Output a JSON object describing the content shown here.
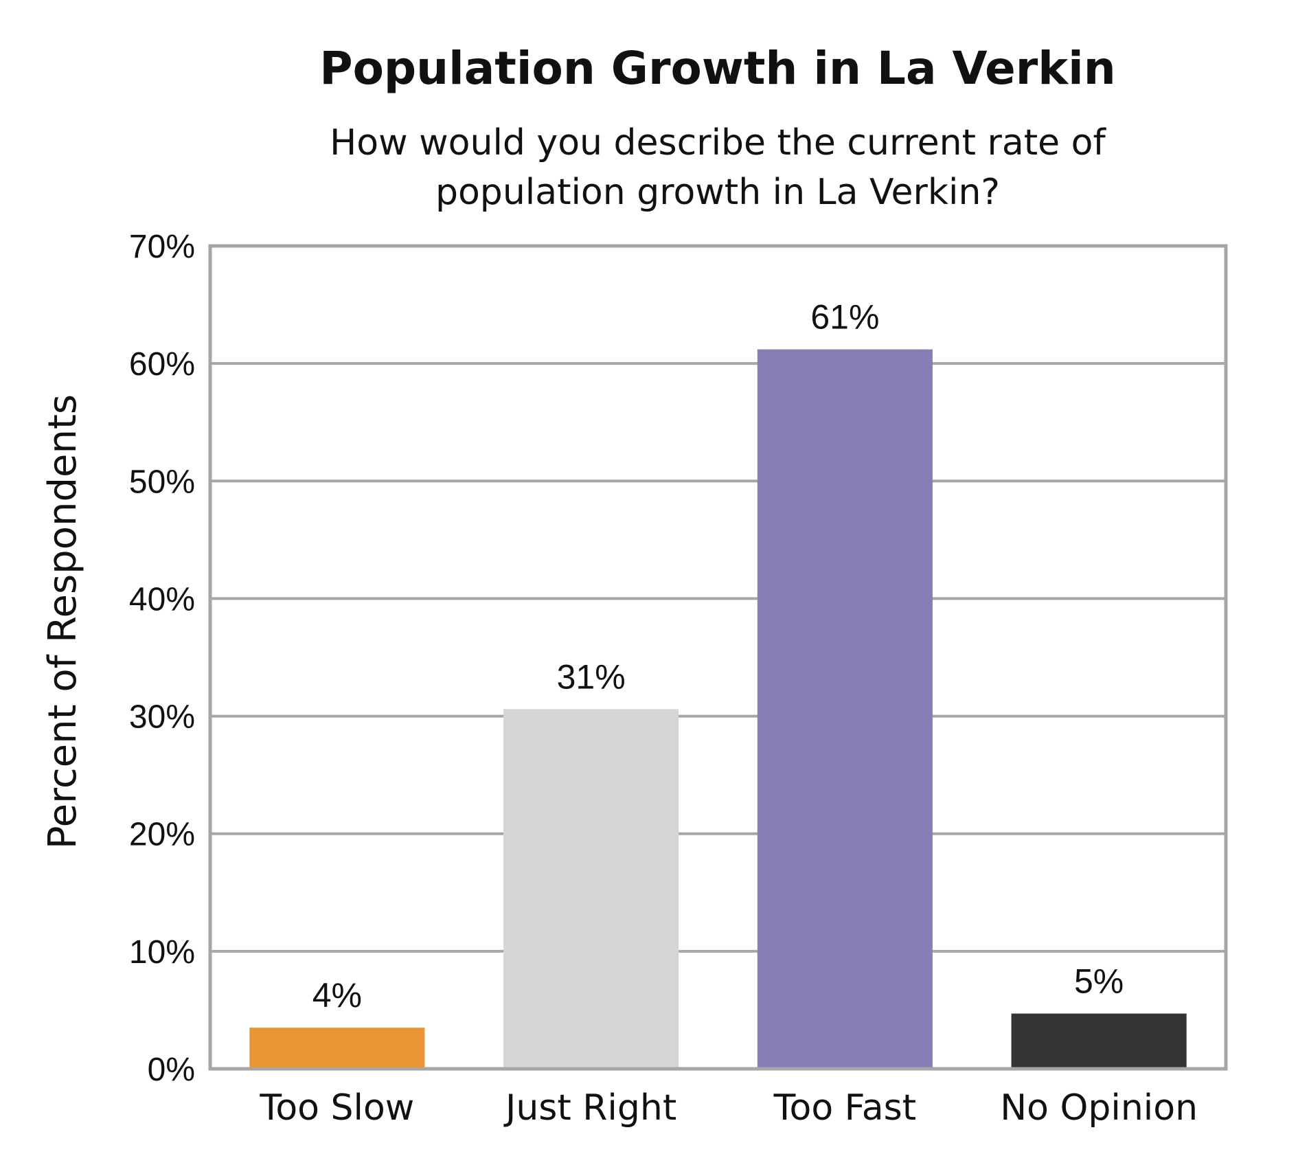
{
  "chart_data": {
    "type": "bar",
    "title": "Population Growth in La Verkin",
    "subtitle": [
      "How would you describe the current rate of",
      "population growth in La Verkin?"
    ],
    "xlabel": "",
    "ylabel": "Percent of Respondents",
    "ylim": [
      0,
      70
    ],
    "yticks": [
      0,
      10,
      20,
      30,
      40,
      50,
      60,
      70
    ],
    "ytick_labels": [
      "0%",
      "10%",
      "20%",
      "30%",
      "40%",
      "50%",
      "60%",
      "70%"
    ],
    "grid": true,
    "categories": [
      "Too Slow",
      "Just Right",
      "Too Fast",
      "No Opinion"
    ],
    "values": [
      3.5,
      30.6,
      61.2,
      4.7
    ],
    "value_labels": [
      "4%",
      "31%",
      "61%",
      "5%"
    ],
    "colors": [
      "#E99535",
      "#D5D5D5",
      "#897DB7",
      "#333333"
    ],
    "gridline_color": "#A6A6A6",
    "frame_color": "#A6A6A6"
  }
}
